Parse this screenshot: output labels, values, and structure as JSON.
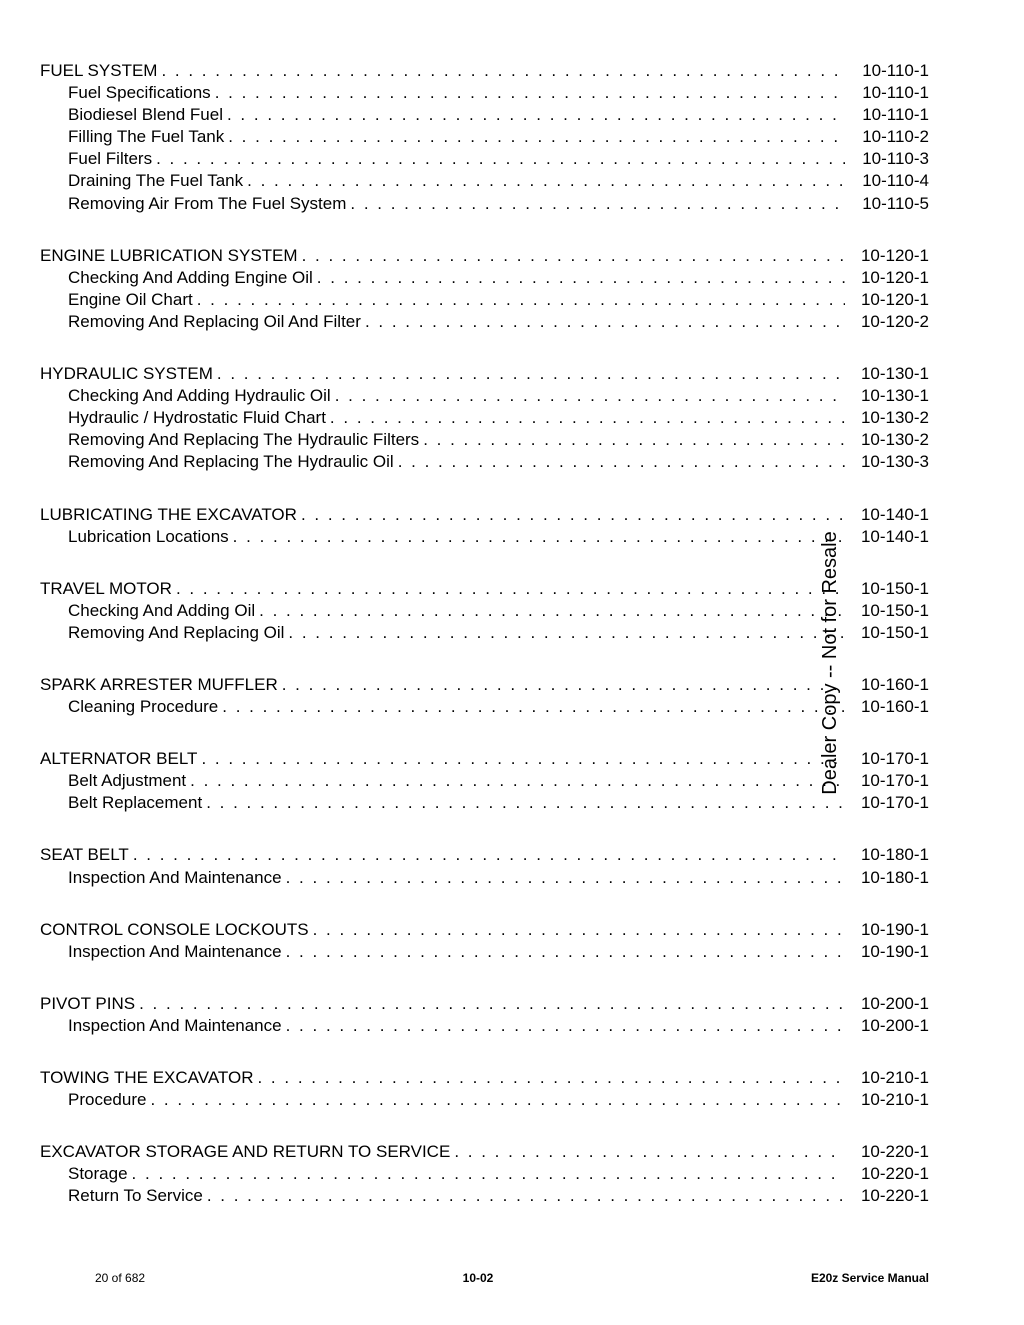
{
  "watermark": "Dealer Copy -- Not for Resale",
  "footer": {
    "left": "20 of 682",
    "center": "10-02",
    "right": "E20z Service Manual"
  },
  "colors": {
    "background": "#ffffff",
    "text": "#000000"
  },
  "typography": {
    "body_fontsize": 17,
    "footer_fontsize": 12,
    "watermark_fontsize": 20,
    "font_family": "Arial"
  },
  "toc": [
    {
      "title": "FUEL SYSTEM",
      "page": "10-110-1",
      "items": [
        {
          "title": "Fuel Specifications",
          "page": "10-110-1"
        },
        {
          "title": "Biodiesel Blend Fuel",
          "page": "10-110-1"
        },
        {
          "title": "Filling The Fuel Tank",
          "page": "10-110-2"
        },
        {
          "title": "Fuel Filters",
          "page": "10-110-3"
        },
        {
          "title": "Draining The Fuel Tank",
          "page": "10-110-4"
        },
        {
          "title": "Removing Air From The Fuel System",
          "page": "10-110-5"
        }
      ]
    },
    {
      "title": "ENGINE LUBRICATION SYSTEM",
      "page": "10-120-1",
      "items": [
        {
          "title": "Checking And Adding Engine Oil",
          "page": "10-120-1"
        },
        {
          "title": "Engine Oil Chart",
          "page": "10-120-1"
        },
        {
          "title": "Removing And Replacing Oil And Filter",
          "page": "10-120-2"
        }
      ]
    },
    {
      "title": "HYDRAULIC SYSTEM",
      "page": "10-130-1",
      "items": [
        {
          "title": "Checking And Adding Hydraulic Oil",
          "page": "10-130-1"
        },
        {
          "title": "Hydraulic / Hydrostatic Fluid Chart",
          "page": "10-130-2"
        },
        {
          "title": "Removing And Replacing The Hydraulic Filters",
          "page": "10-130-2"
        },
        {
          "title": "Removing And Replacing The Hydraulic Oil",
          "page": "10-130-3"
        }
      ]
    },
    {
      "title": "LUBRICATING THE EXCAVATOR",
      "page": "10-140-1",
      "items": [
        {
          "title": "Lubrication Locations",
          "page": "10-140-1"
        }
      ]
    },
    {
      "title": "TRAVEL MOTOR",
      "page": "10-150-1",
      "items": [
        {
          "title": "Checking And Adding Oil",
          "page": "10-150-1"
        },
        {
          "title": "Removing And Replacing Oil",
          "page": "10-150-1"
        }
      ]
    },
    {
      "title": "SPARK ARRESTER MUFFLER",
      "page": "10-160-1",
      "items": [
        {
          "title": "Cleaning Procedure",
          "page": "10-160-1"
        }
      ]
    },
    {
      "title": "ALTERNATOR BELT",
      "page": "10-170-1",
      "items": [
        {
          "title": "Belt Adjustment",
          "page": "10-170-1"
        },
        {
          "title": "Belt Replacement",
          "page": "10-170-1"
        }
      ]
    },
    {
      "title": "SEAT BELT",
      "page": "10-180-1",
      "items": [
        {
          "title": "Inspection And Maintenance",
          "page": "10-180-1"
        }
      ]
    },
    {
      "title": "CONTROL CONSOLE LOCKOUTS",
      "page": "10-190-1",
      "items": [
        {
          "title": "Inspection And Maintenance",
          "page": "10-190-1"
        }
      ]
    },
    {
      "title": "PIVOT PINS",
      "page": "10-200-1",
      "items": [
        {
          "title": "Inspection And Maintenance",
          "page": "10-200-1"
        }
      ]
    },
    {
      "title": "TOWING THE EXCAVATOR",
      "page": "10-210-1",
      "items": [
        {
          "title": "Procedure",
          "page": "10-210-1"
        }
      ]
    },
    {
      "title": "EXCAVATOR STORAGE AND RETURN TO SERVICE",
      "page": "10-220-1",
      "items": [
        {
          "title": "Storage",
          "page": "10-220-1"
        },
        {
          "title": "Return To Service",
          "page": "10-220-1"
        }
      ]
    }
  ]
}
